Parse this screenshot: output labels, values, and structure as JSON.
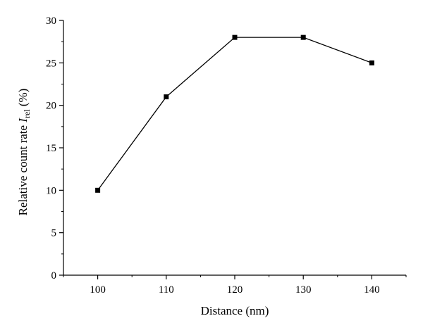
{
  "chart_data": {
    "type": "line",
    "title": "",
    "xlabel": "Distance (nm)",
    "ylabel": {
      "prefix": "Relative count rate ",
      "symbol": "I",
      "subscript": "rel",
      "suffix": " (%)"
    },
    "x": [
      100,
      110,
      120,
      130,
      140
    ],
    "series": [
      {
        "values": [
          10,
          21,
          28,
          28,
          25
        ]
      }
    ],
    "xlim": [
      95,
      145
    ],
    "ylim": [
      0,
      30
    ],
    "xticks": [
      100,
      110,
      120,
      130,
      140
    ],
    "yticks": [
      0,
      5,
      10,
      15,
      20,
      25,
      30
    ],
    "grid": false,
    "legend": "none",
    "line_color": "#000000",
    "marker": "square"
  }
}
